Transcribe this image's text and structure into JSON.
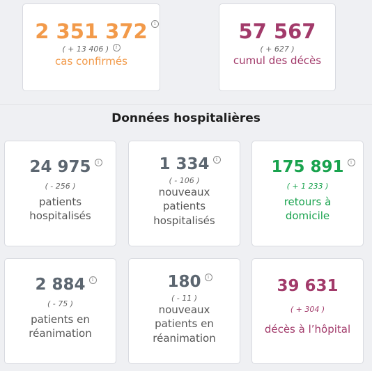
{
  "colors": {
    "cases": "#f29a4a",
    "deaths": "#a23a6a",
    "neutral": "#5c6670",
    "green": "#19a34e",
    "text": "#555555"
  },
  "info_icon": "info-icon",
  "top": {
    "cases": {
      "value": "2 351 372",
      "delta": "( + 13 406 )",
      "label": "cas confirmés"
    },
    "deaths": {
      "value": "57 567",
      "delta": "( + 627 )",
      "label": "cumul des décès"
    }
  },
  "section_title": "Données hospitalières",
  "hospital": {
    "hospitalized": {
      "value": "24 975",
      "delta": "( - 256 )",
      "label_1": "patients",
      "label_2": "hospitalisés"
    },
    "new_hospitalized": {
      "value": "1 334",
      "delta": "( - 106 )",
      "label_1": "nouveaux",
      "label_2": "patients",
      "label_3": "hospitalisés"
    },
    "returns_home": {
      "value": "175 891",
      "delta": "( + 1 233 )",
      "label_1": "retours à",
      "label_2": "domicile"
    },
    "icu": {
      "value": "2 884",
      "delta": "( - 75 )",
      "label_1": "patients en",
      "label_2": "réanimation"
    },
    "new_icu": {
      "value": "180",
      "delta": "( - 11 )",
      "label_1": "nouveaux",
      "label_2": "patients en",
      "label_3": "réanimation"
    },
    "hospital_deaths": {
      "value": "39 631",
      "delta": "( + 304 )",
      "label_1": "décès à l’hôpital"
    }
  }
}
